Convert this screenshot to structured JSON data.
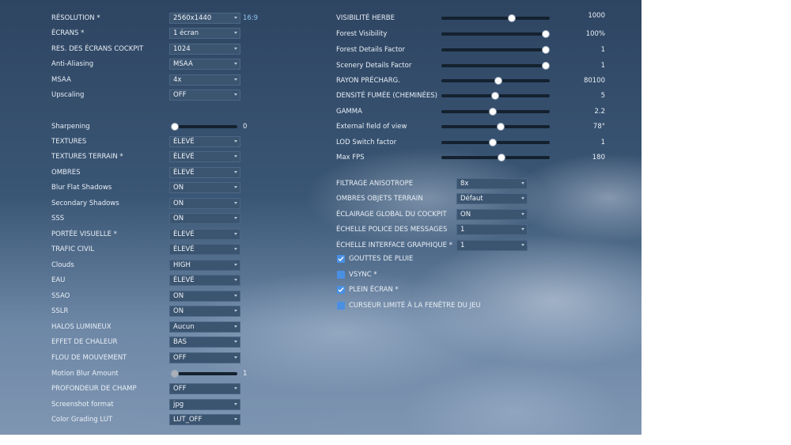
{
  "left_settings": [
    {
      "label": "RÉSOLUTION *",
      "value": "2560x1440",
      "extra": "16:9"
    },
    {
      "label": "ÉCRANS *",
      "value": "1 écran"
    },
    {
      "label": "RES. DES ÉCRANS COCKPIT",
      "value": "1024"
    },
    {
      "label": "Anti-Aliasing",
      "value": "MSAA"
    },
    {
      "label": "MSAA",
      "value": "4x"
    },
    {
      "label": "Upscaling",
      "value": "OFF"
    },
    {
      "label": "Sharpening",
      "slider": 0,
      "value_text": "0"
    },
    {
      "label": "TEXTURES",
      "value": "ÉLEVÉ"
    },
    {
      "label": "TEXTURES TERRAIN *",
      "value": "ÉLEVÉ"
    },
    {
      "label": "OMBRES",
      "value": "ÉLEVÉ"
    },
    {
      "label": "Blur Flat Shadows",
      "value": "ON"
    },
    {
      "label": "Secondary Shadows",
      "value": "ON"
    },
    {
      "label": "SSS",
      "value": "ON"
    },
    {
      "label": "PORTÉE VISUELLE *",
      "value": "ÉLEVÉ"
    },
    {
      "label": "TRAFIC CIVIL",
      "value": "ÉLEVÉ"
    },
    {
      "label": "Clouds",
      "value": "HIGH"
    },
    {
      "label": "EAU",
      "value": "ÉLEVÉ"
    },
    {
      "label": "SSAO",
      "value": "ON"
    },
    {
      "label": "SSLR",
      "value": "ON"
    },
    {
      "label": "HALOS LUMINEUX",
      "value": "Aucun"
    },
    {
      "label": "EFFET DE CHALEUR",
      "value": "BAS"
    },
    {
      "label": "FLOU DE MOUVEMENT",
      "value": "OFF"
    },
    {
      "label": "Motion Blur Amount",
      "slider": 0,
      "value_text": "1",
      "disabled": true
    },
    {
      "label": "PROFONDEUR DE CHAMP",
      "value": "OFF"
    },
    {
      "label": "Screenshot format",
      "value": "jpg"
    },
    {
      "label": "Color Grading LUT",
      "value": "LUT_OFF"
    }
  ],
  "right_sliders": [
    {
      "label": "VISIBILITÉ HERBE",
      "value_text": "1000",
      "fraction": 0.66
    },
    {
      "label": "Forest Visibility",
      "value_text": "100%",
      "fraction": 0.98
    },
    {
      "label": "Forest Details Factor",
      "value_text": "1",
      "fraction": 0.98
    },
    {
      "label": "Scenery Details Factor",
      "value_text": "1",
      "fraction": 0.98
    },
    {
      "label": "RAYON PRÉCHARG.",
      "value_text": "80100",
      "fraction": 0.53
    },
    {
      "label": "DENSITÉ FUMÉE (CHEMINÉES)",
      "value_text": "5",
      "fraction": 0.5
    },
    {
      "label": "GAMMA",
      "value_text": "2.2",
      "fraction": 0.48
    },
    {
      "label": "External field of view",
      "value_text": "78°",
      "fraction": 0.55
    },
    {
      "label": "LOD Switch factor",
      "value_text": "1",
      "fraction": 0.48
    },
    {
      "label": "Max FPS",
      "value_text": "180",
      "fraction": 0.56
    }
  ],
  "right_dropdowns": [
    {
      "label": "FILTRAGE ANISOTROPE",
      "value": "8x"
    },
    {
      "label": "OMBRES OBJETS TERRAIN",
      "value": "Défaut"
    },
    {
      "label": "ÉCLAIRAGE GLOBAL DU COCKPIT",
      "value": "ON"
    },
    {
      "label": "ÉCHELLE POLICE DES MESSAGES",
      "value": "1"
    },
    {
      "label": "ÉCHELLE INTERFACE GRAPHIQUE *",
      "value": "1"
    }
  ],
  "checkboxes": [
    {
      "label": "GOUTTES DE PLUIE",
      "checked": true
    },
    {
      "label": "VSYNC *",
      "checked": false
    },
    {
      "label": "PLEIN ÉCRAN *",
      "checked": true
    },
    {
      "label": "CURSEUR LIMITÉ À LA FENÊTRE DU JEU",
      "checked": false
    }
  ],
  "colors": {
    "accent": "#4a90e2",
    "aspect_text": "#8fc3ee",
    "dropdown_bg": "#3b5470"
  }
}
